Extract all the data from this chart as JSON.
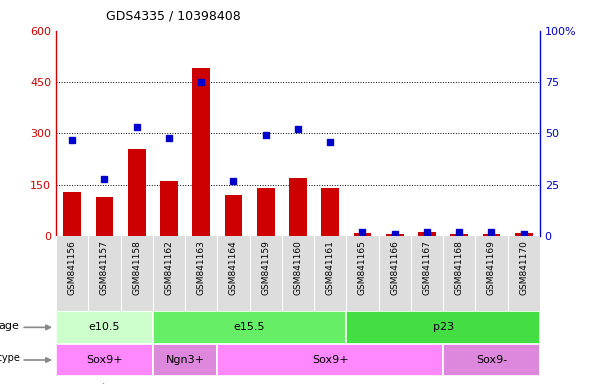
{
  "title": "GDS4335 / 10398408",
  "samples": [
    "GSM841156",
    "GSM841157",
    "GSM841158",
    "GSM841162",
    "GSM841163",
    "GSM841164",
    "GSM841159",
    "GSM841160",
    "GSM841161",
    "GSM841165",
    "GSM841166",
    "GSM841167",
    "GSM841168",
    "GSM841169",
    "GSM841170"
  ],
  "counts": [
    130,
    115,
    255,
    160,
    490,
    120,
    140,
    170,
    140,
    10,
    5,
    12,
    5,
    7,
    10
  ],
  "percentiles": [
    47,
    28,
    53,
    48,
    75,
    27,
    49,
    52,
    46,
    2,
    1,
    2,
    2,
    2,
    1
  ],
  "ylim_left": [
    0,
    600
  ],
  "ylim_right": [
    0,
    100
  ],
  "yticks_left": [
    0,
    150,
    300,
    450,
    600
  ],
  "yticks_right": [
    0,
    25,
    50,
    75,
    100
  ],
  "bar_color": "#cc0000",
  "dot_color": "#0000cc",
  "age_groups": [
    {
      "label": "e10.5",
      "start": 0,
      "end": 3,
      "color": "#ccffcc"
    },
    {
      "label": "e15.5",
      "start": 3,
      "end": 9,
      "color": "#66ee66"
    },
    {
      "label": "p23",
      "start": 9,
      "end": 15,
      "color": "#44dd44"
    }
  ],
  "cell_type_groups": [
    {
      "label": "Sox9+",
      "start": 0,
      "end": 3,
      "color": "#ff88ff"
    },
    {
      "label": "Ngn3+",
      "start": 3,
      "end": 5,
      "color": "#dd88dd"
    },
    {
      "label": "Sox9+",
      "start": 5,
      "end": 12,
      "color": "#ff88ff"
    },
    {
      "label": "Sox9-",
      "start": 12,
      "end": 15,
      "color": "#dd88dd"
    }
  ],
  "tick_label_color_left": "#cc0000",
  "tick_label_color_right": "#0000cc",
  "legend_count_color": "#cc0000",
  "legend_pct_color": "#0000cc",
  "plot_bg": "#ffffff",
  "xticklabels_bg": "#dddddd"
}
